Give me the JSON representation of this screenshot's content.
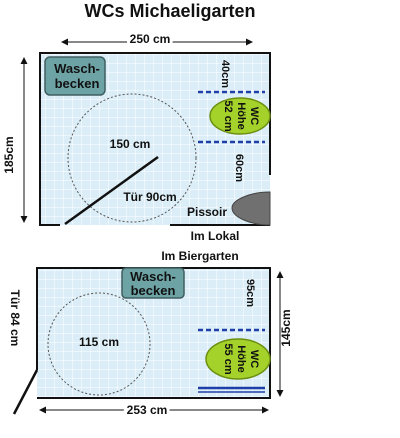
{
  "title": "WCs Michaeligarten",
  "room_lokal": {
    "label": "Im Lokal",
    "width_label": "250 cm",
    "height_label": "185cm",
    "sink_label_line1": "Wasch-",
    "sink_label_line2": "becken",
    "turn_circle_label": "150 cm",
    "door_label": "Tür 90cm",
    "pissoir_label": "Pissoir",
    "wc_label_line1": "WC",
    "wc_label_line2": "Höhe",
    "wc_label_line3": "52 cm",
    "dim_top_right": "40cm",
    "dim_right_middle": "60cm"
  },
  "room_biergarten": {
    "label": "Im Biergarten",
    "width_label": "253 cm",
    "height_label": "145cm",
    "door_label": "Tür 84 cm",
    "sink_label_line1": "Wasch-",
    "sink_label_line2": "becken",
    "turn_circle_label": "115 cm",
    "wc_label_line1": "WC",
    "wc_label_line2": "Höhe",
    "wc_label_line3": "55 cm",
    "dim_right_top": "95cm"
  },
  "colors": {
    "floor": "#dbeef8",
    "grid": "#ffffff",
    "sink": "#6ea3a6",
    "wc": "#a4d22b",
    "pissoir": "#707070",
    "grab_bar": "#1f3fa8"
  }
}
